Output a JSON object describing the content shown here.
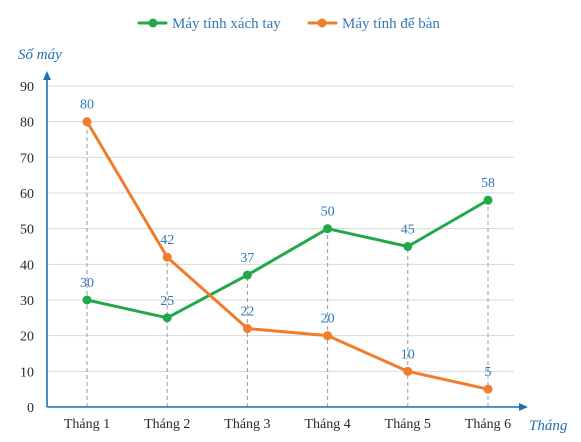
{
  "chart_data": {
    "type": "line",
    "title": "",
    "xlabel": "Tháng",
    "ylabel": "Số máy",
    "categories": [
      "Tháng 1",
      "Tháng 2",
      "Tháng 3",
      "Tháng 4",
      "Tháng 5",
      "Tháng 6"
    ],
    "yticks": [
      0,
      10,
      20,
      30,
      40,
      50,
      60,
      70,
      80,
      90
    ],
    "ylim": [
      0,
      90
    ],
    "legend_position": "top-center",
    "grid": true,
    "series": [
      {
        "name": "Máy tính xách tay",
        "values": [
          30,
          25,
          37,
          50,
          45,
          58
        ],
        "labels": [
          "30",
          "25",
          "37",
          "50",
          "45",
          "58"
        ],
        "color": "#22a84a"
      },
      {
        "name": "Máy tính để bàn",
        "values": [
          80,
          42,
          22,
          20,
          10,
          5
        ],
        "labels": [
          "80",
          "42",
          "22",
          "20",
          "10",
          "5"
        ],
        "color": "#f07d2d"
      }
    ]
  }
}
